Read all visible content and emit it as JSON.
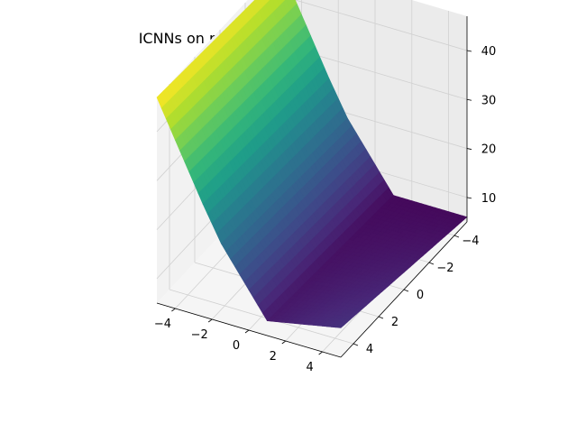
{
  "chart_data": {
    "type": "surface3d",
    "title": "ICNNs on rastrigin at t = 70 with lr0.0001",
    "xlabel": "",
    "ylabel": "",
    "zlabel": "",
    "colormap": "viridis",
    "xlim": [
      -5,
      5
    ],
    "ylim": [
      -5,
      5
    ],
    "zlim": [
      5,
      47
    ],
    "x_ticks": [
      -4,
      -2,
      0,
      2,
      4
    ],
    "y_ticks": [
      -4,
      -2,
      0,
      2,
      4
    ],
    "z_ticks": [
      10,
      20,
      30,
      40
    ],
    "x_tick_labels": [
      "−4",
      "−2",
      "0",
      "2",
      "4"
    ],
    "y_tick_labels": [
      "−4",
      "−2",
      "0",
      "2",
      "4"
    ],
    "z_tick_labels": [
      "10",
      "20",
      "30",
      "40"
    ],
    "grid": true,
    "surface_profile": {
      "description_axis": "z as a function of x (nearly constant along y)",
      "x": [
        -5,
        -2.5,
        -1.5,
        1,
        5
      ],
      "z_at_y_min": [
        45,
        26,
        19,
        6,
        6
      ],
      "z_at_y_max": [
        47,
        28,
        21,
        8,
        11
      ]
    }
  }
}
